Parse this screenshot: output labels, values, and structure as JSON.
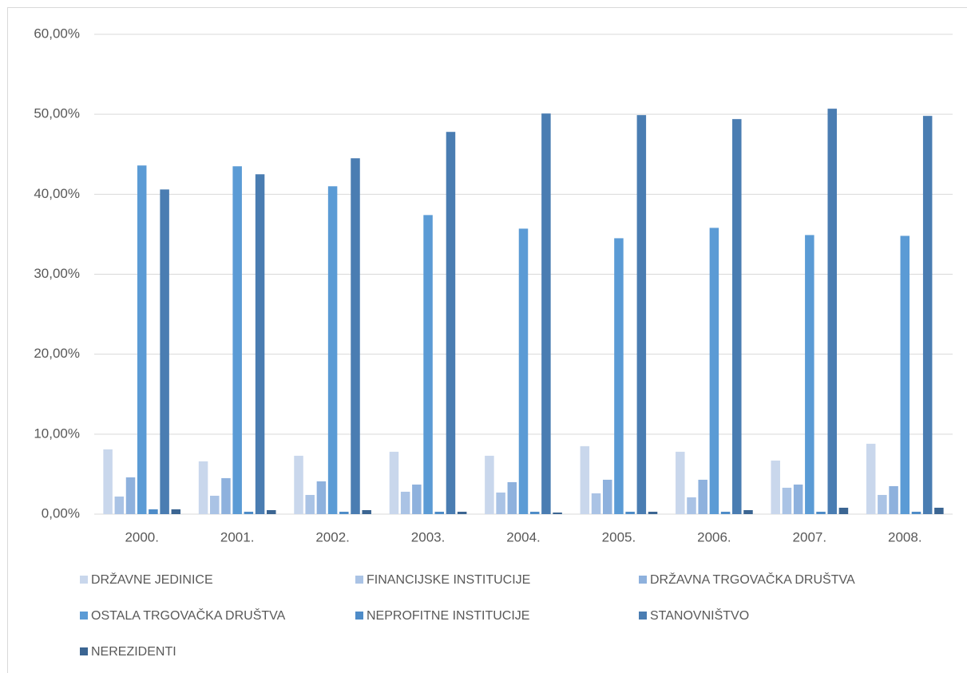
{
  "chart_data": {
    "type": "bar",
    "categories": [
      "2000.",
      "2001.",
      "2002.",
      "2003.",
      "2004.",
      "2005.",
      "2006.",
      "2007.",
      "2008."
    ],
    "series": [
      {
        "name": "DRŽAVNE JEDINICE",
        "color": "#c9d7ec",
        "values": [
          8.1,
          6.6,
          7.3,
          7.8,
          7.3,
          8.5,
          7.8,
          6.7,
          8.8
        ]
      },
      {
        "name": "FINANCIJSKE INSTITUCIJE",
        "color": "#aac3e5",
        "values": [
          2.2,
          2.3,
          2.4,
          2.8,
          2.7,
          2.6,
          2.1,
          3.3,
          2.4
        ]
      },
      {
        "name": "DRŽAVNA TRGOVAČKA DRUŠTVA",
        "color": "#8eb1dd",
        "values": [
          4.6,
          4.5,
          4.1,
          3.7,
          4.0,
          4.3,
          4.3,
          3.7,
          3.5
        ]
      },
      {
        "name": "OSTALA TRGOVAČKA DRUŠTVA",
        "color": "#5b9bd5",
        "values": [
          43.6,
          43.5,
          41.0,
          37.4,
          35.7,
          34.5,
          35.8,
          34.9,
          34.8
        ]
      },
      {
        "name": "NEPROFITNE INSTITUCIJE",
        "color": "#4e8cc8",
        "values": [
          0.6,
          0.3,
          0.3,
          0.3,
          0.3,
          0.3,
          0.3,
          0.3,
          0.3
        ]
      },
      {
        "name": "STANOVNIŠTVO",
        "color": "#4a7db2",
        "values": [
          40.6,
          42.5,
          44.5,
          47.8,
          50.1,
          49.9,
          49.4,
          50.7,
          49.8
        ]
      },
      {
        "name": "NEREZIDENTI",
        "color": "#3b6592",
        "values": [
          0.6,
          0.5,
          0.5,
          0.3,
          0.2,
          0.3,
          0.5,
          0.8,
          0.8
        ]
      }
    ],
    "ylim": [
      0,
      60
    ],
    "yticks": [
      {
        "value": 0,
        "label": "0,00%"
      },
      {
        "value": 10,
        "label": "10,00%"
      },
      {
        "value": 20,
        "label": "20,00%"
      },
      {
        "value": 30,
        "label": "30,00%"
      },
      {
        "value": 40,
        "label": "40,00%"
      },
      {
        "value": 50,
        "label": "50,00%"
      },
      {
        "value": 60,
        "label": "60,00%"
      }
    ],
    "grid": true,
    "legend": "bottom"
  }
}
